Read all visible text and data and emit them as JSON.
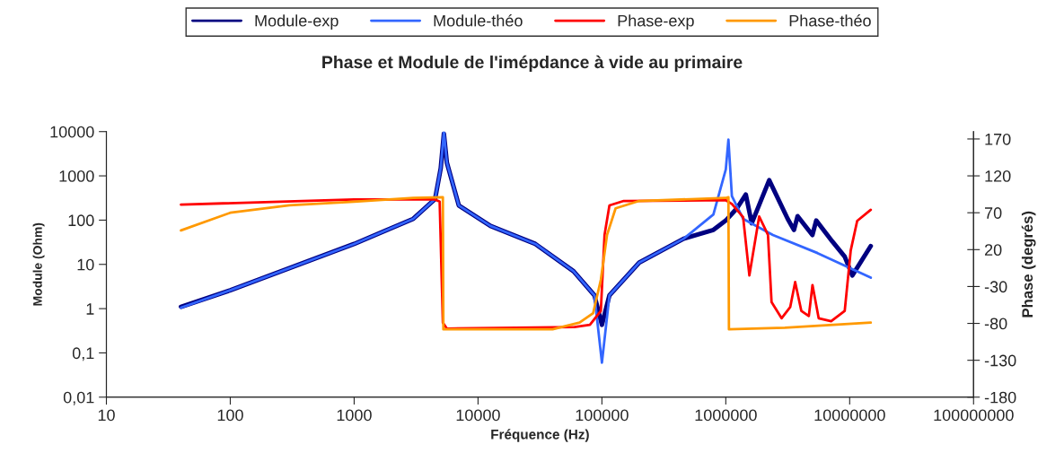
{
  "chart_data": {
    "type": "line",
    "title": "Phase et Module de l'imépdance à vide au primaire",
    "xlabel": "Fréquence (Hz)",
    "ylabel": "Module (Ohm)",
    "y2label": "Phase (degrés)",
    "log": "xy",
    "grid": false,
    "legend": "top",
    "marker": "none",
    "line_style": "solid",
    "xlim": [
      10,
      100000000
    ],
    "xticks": [
      10,
      100,
      1000,
      10000,
      100000,
      1000000,
      10000000,
      100000000
    ],
    "ylim": [
      0.01,
      10000
    ],
    "yticks": [
      {
        "value": 0.01,
        "label": "0,01"
      },
      {
        "value": 0.1,
        "label": "0,1"
      },
      1,
      10,
      100,
      1000,
      10000
    ],
    "y2lim": [
      -180,
      180
    ],
    "y2ticks": [
      -180,
      -130,
      -80,
      -30,
      20,
      70,
      120,
      170
    ],
    "series": [
      {
        "name": "Module-exp",
        "color": "#000080",
        "x": [
          40,
          100,
          1000,
          3000,
          4500,
          5000,
          5300,
          5600,
          7000,
          12600,
          29000,
          59000,
          87000,
          100000,
          115000,
          200000,
          457000,
          794000,
          1000000,
          1230000,
          1450000,
          1620000,
          2240000,
          3160000,
          3550000,
          3800000,
          5000000,
          5370000,
          7240000,
          9120000,
          10500000,
          14800000
        ],
        "values": [
          1.1,
          2.6,
          29,
          107,
          300,
          1500,
          9000,
          2000,
          213,
          74,
          29,
          7,
          2,
          0.43,
          2,
          11,
          38,
          60,
          98,
          185,
          380,
          85,
          800,
          107,
          60,
          123,
          46,
          98,
          33,
          15,
          5.6,
          26
        ]
      },
      {
        "name": "Module-théo",
        "color": "#3366ff",
        "x": [
          40,
          100,
          1000,
          3000,
          4500,
          5000,
          5300,
          5600,
          7000,
          12600,
          29000,
          59000,
          87000,
          100000,
          115000,
          200000,
          457000,
          794000,
          1000000,
          1050000,
          1120000,
          1380000,
          2400000,
          5500000,
          14800000
        ],
        "values": [
          1.05,
          2.6,
          29,
          107,
          300,
          1500,
          10000,
          2000,
          213,
          74,
          29,
          7,
          2,
          0.06,
          2,
          11,
          38,
          134,
          1400,
          6600,
          350,
          107,
          46,
          18,
          5
        ]
      },
      {
        "name": "Phase-exp",
        "color": "#ff0000",
        "axis": "y2",
        "x": [
          40,
          1000,
          4500,
          4900,
          5200,
          5600,
          60000,
          80000,
          98000,
          105000,
          115000,
          150000,
          1000000,
          1120000,
          1380000,
          1550000,
          1860000,
          2190000,
          2340000,
          2820000,
          3310000,
          3630000,
          4070000,
          4680000,
          5010000,
          5620000,
          7080000,
          9120000,
          10200000,
          11500000,
          14800000
        ],
        "values": [
          81,
          88,
          88,
          85,
          -79,
          -87,
          -85,
          -82,
          -63,
          40,
          80,
          86,
          87,
          82,
          64,
          -15,
          65,
          40,
          -51,
          -73,
          -58,
          -24,
          -63,
          -70,
          -28,
          -73,
          -77,
          -63,
          19,
          59,
          74
        ]
      },
      {
        "name": "Phase-théo",
        "color": "#ff9900",
        "axis": "y2",
        "x": [
          40,
          100,
          300,
          1000,
          3000,
          5200,
          5250,
          40000,
          66000,
          85000,
          98000,
          110000,
          129000,
          200000,
          1000000,
          1050000,
          1060000,
          3000000,
          14800000
        ],
        "values": [
          46,
          70,
          80,
          85,
          90,
          91,
          -88,
          -88,
          -79,
          -66,
          -21,
          40,
          76,
          86,
          90,
          91,
          -88,
          -86,
          -79
        ]
      }
    ]
  }
}
